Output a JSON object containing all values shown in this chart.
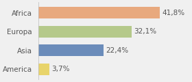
{
  "categories": [
    "Africa",
    "Europa",
    "Asia",
    "America"
  ],
  "values": [
    41.8,
    32.1,
    22.4,
    3.7
  ],
  "labels": [
    "41,8%",
    "32,1%",
    "22,4%",
    "3,7%"
  ],
  "bar_colors": [
    "#e8a97e",
    "#b5c98a",
    "#6b8cba",
    "#e8d46a"
  ],
  "background_color": "#f0f0f0",
  "xlim": [
    0,
    52
  ],
  "label_fontsize": 7.5,
  "category_fontsize": 7.5
}
